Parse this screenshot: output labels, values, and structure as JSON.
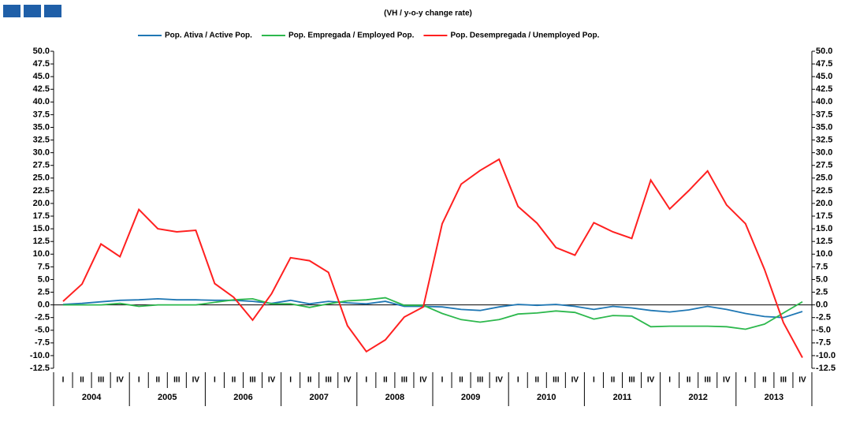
{
  "chart_data": {
    "type": "line",
    "subtitle": "(VH / y-o-y change rate)",
    "categories": [
      "I",
      "II",
      "III",
      "IV",
      "I",
      "II",
      "III",
      "IV",
      "I",
      "II",
      "III",
      "IV",
      "I",
      "II",
      "III",
      "IV",
      "I",
      "II",
      "III",
      "IV",
      "I",
      "II",
      "III",
      "IV",
      "I",
      "II",
      "III",
      "IV",
      "I",
      "II",
      "III",
      "IV",
      "I",
      "II",
      "III",
      "IV",
      "I",
      "II",
      "III",
      "IV"
    ],
    "years": [
      "2004",
      "2005",
      "2006",
      "2007",
      "2008",
      "2009",
      "2010",
      "2011",
      "2012",
      "2013"
    ],
    "ylim": [
      -12.5,
      50
    ],
    "yticks": [
      -12.5,
      {
        "value": -10,
        "label": "-10.0"
      },
      -7.5,
      {
        "value": -5,
        "label": "-5.0"
      },
      -2.5,
      {
        "value": 0,
        "label": "0.0"
      },
      2.5,
      {
        "value": 5,
        "label": "5.0"
      },
      7.5,
      {
        "value": 10,
        "label": "10.0"
      },
      12.5,
      {
        "value": 15,
        "label": "15.0"
      },
      17.5,
      {
        "value": 20,
        "label": "20.0"
      },
      22.5,
      {
        "value": 25,
        "label": "25.0"
      },
      27.5,
      {
        "value": 30,
        "label": "30.0"
      },
      32.5,
      {
        "value": 35,
        "label": "35.0"
      },
      37.5,
      {
        "value": 40,
        "label": "40.0"
      },
      42.5,
      {
        "value": 45,
        "label": "45.0"
      },
      47.5,
      {
        "value": 50,
        "label": "50.0"
      }
    ],
    "legend": "top",
    "series": [
      {
        "name": "Pop. Ativa / Active Pop.",
        "color": "#1f77b4",
        "values": [
          0.1,
          0.3,
          0.6,
          0.9,
          1.0,
          1.2,
          1.0,
          1.0,
          0.9,
          0.9,
          0.7,
          0.3,
          0.9,
          0.2,
          0.7,
          0.4,
          0.2,
          0.7,
          -0.3,
          -0.3,
          -0.4,
          -0.9,
          -1.1,
          -0.4,
          0.1,
          -0.1,
          0.1,
          -0.3,
          -0.9,
          -0.3,
          -0.6,
          -1.1,
          -1.4,
          -1.0,
          -0.3,
          -0.9,
          -1.7,
          -2.3,
          -2.5,
          -1.3
        ]
      },
      {
        "name": "Pop. Empregada / Employed Pop.",
        "color": "#2db84d",
        "values": [
          0.0,
          0.0,
          0.0,
          0.3,
          -0.3,
          0.0,
          0.0,
          0.0,
          0.5,
          1.0,
          1.2,
          0.2,
          0.2,
          -0.5,
          0.2,
          0.8,
          1.0,
          1.4,
          -0.1,
          -0.1,
          -1.7,
          -2.9,
          -3.4,
          -2.9,
          -1.8,
          -1.6,
          -1.2,
          -1.5,
          -2.8,
          -2.1,
          -2.2,
          -4.3,
          -4.2,
          -4.2,
          -4.2,
          -4.3,
          -4.8,
          -3.8,
          -1.6,
          0.6
        ]
      },
      {
        "name": "Pop. Desempregada / Unemployed Pop.",
        "color": "#ff2020",
        "values": [
          0.7,
          4.1,
          12.0,
          9.5,
          18.8,
          15.0,
          14.4,
          14.7,
          4.2,
          1.5,
          -3.0,
          2.2,
          9.3,
          8.7,
          6.4,
          -4.1,
          -9.2,
          -6.9,
          -2.4,
          -0.4,
          16.0,
          23.8,
          26.5,
          28.7,
          19.4,
          16.1,
          11.3,
          9.8,
          16.2,
          14.4,
          13.1,
          24.6,
          18.9,
          22.5,
          26.4,
          19.7,
          16.0,
          7.0,
          -3.5,
          -10.4
        ]
      }
    ]
  }
}
